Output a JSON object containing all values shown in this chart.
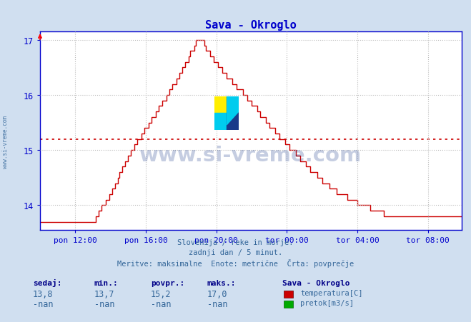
{
  "title": "Sava - Okroglo",
  "title_color": "#0000cc",
  "title_fontsize": 11,
  "bg_color": "#d0dff0",
  "plot_bg_color": "#ffffff",
  "grid_color": "#bbbbbb",
  "axis_color": "#0000cc",
  "tick_color": "#0000cc",
  "line_color": "#cc0000",
  "avg_value": 15.2,
  "ylim_min": 13.55,
  "ylim_max": 17.15,
  "yticks": [
    14,
    15,
    16,
    17
  ],
  "xtick_labels": [
    "pon 12:00",
    "pon 16:00",
    "pon 20:00",
    "tor 00:00",
    "tor 04:00",
    "tor 08:00"
  ],
  "subtitle_lines": [
    "Slovenija / reke in morje.",
    "zadnji dan / 5 minut.",
    "Meritve: maksimalne  Enote: metrične  Črta: povprečje"
  ],
  "subtitle_color": "#336699",
  "footer_label_color": "#000088",
  "footer_value_color": "#336699",
  "watermark_text": "www.si-vreme.com",
  "watermark_color": "#1a3a8a",
  "watermark_alpha": 0.25,
  "sedaj": "13,8",
  "min_val": "13,7",
  "povpr": "15,2",
  "maks": "17,0",
  "station": "Sava - Okroglo",
  "legend1_label": "temperatura[C]",
  "legend1_color": "#cc0000",
  "legend2_label": "pretok[m3/s]",
  "legend2_color": "#00aa00",
  "num_points": 288,
  "xlim_min": 0,
  "xlim_max": 287,
  "xtick_positions": [
    24,
    72,
    120,
    168,
    216,
    264
  ]
}
